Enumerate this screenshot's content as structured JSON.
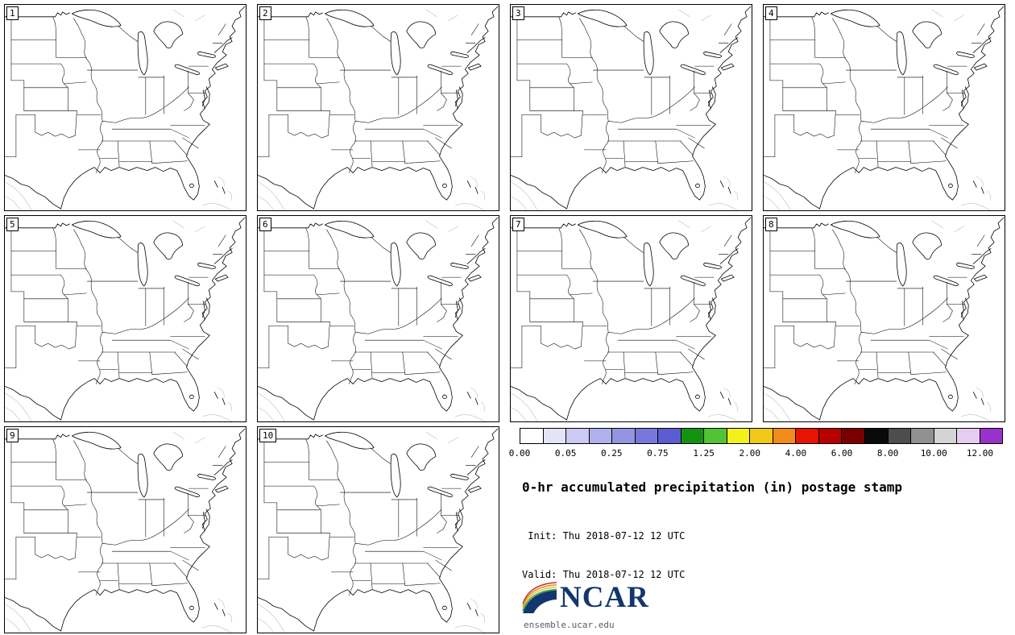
{
  "panels": [
    "1",
    "2",
    "3",
    "4",
    "5",
    "6",
    "7",
    "8",
    "9",
    "10"
  ],
  "colorbar": {
    "tick_labels": [
      "0.00",
      "0.05",
      "0.25",
      "0.75",
      "1.25",
      "2.00",
      "4.00",
      "6.00",
      "8.00",
      "10.00",
      "12.00"
    ],
    "segment_colors": [
      "#ffffff",
      "#e4e4f8",
      "#cacaf2",
      "#b0b0ec",
      "#9494e4",
      "#7878dc",
      "#5c5cd2",
      "#12930f",
      "#53c234",
      "#f2f21a",
      "#f2c81a",
      "#f28c1a",
      "#e61400",
      "#b80000",
      "#7a0000",
      "#0a0a0a",
      "#4d4d4d",
      "#909090",
      "#d4d4d4",
      "#e6ccf2",
      "#9932cc"
    ]
  },
  "info": {
    "title": "0-hr accumulated precipitation (in) postage stamp",
    "init_line": " Init: Thu 2018-07-12 12 UTC",
    "valid_line": "Valid: Thu 2018-07-12 12 UTC",
    "logo_text": "NCAR",
    "website": "ensemble.ucar.edu"
  },
  "colors": {
    "navy": "#14366f",
    "website_gray": "#5a5a6e",
    "map_line": "#000000",
    "neighbor_line": "#bdbdbd"
  }
}
